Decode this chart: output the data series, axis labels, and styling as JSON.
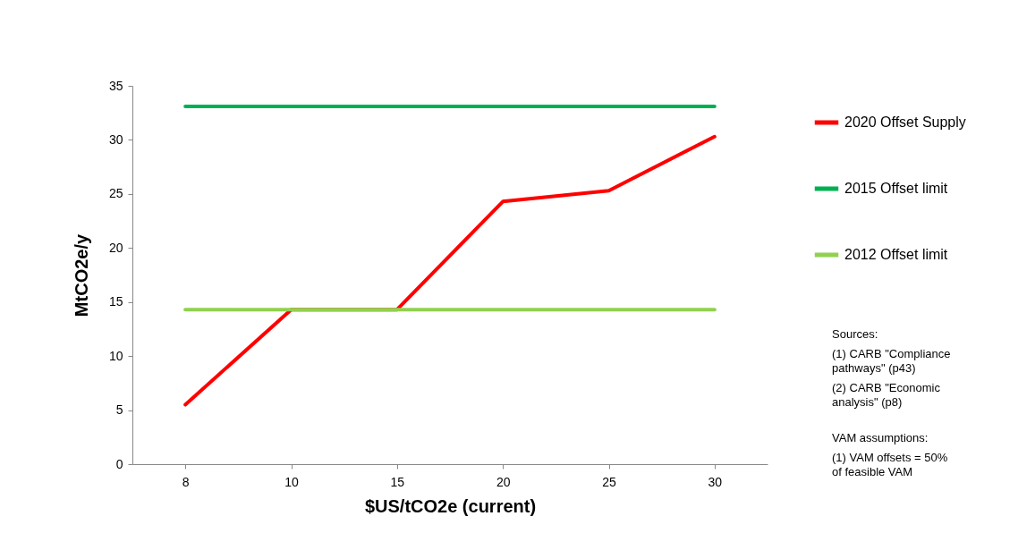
{
  "chart_data": {
    "type": "line",
    "xlabel": "$US/tCO2e (current)",
    "ylabel": "MtCO2e/y",
    "categories": [
      "8",
      "10",
      "15",
      "20",
      "25",
      "30"
    ],
    "series": [
      {
        "name": "2020 Offset Supply",
        "color": "#ff0000",
        "values": [
          5.5,
          14.3,
          14.3,
          24.3,
          25.3,
          30.3
        ]
      },
      {
        "name": "2015 Offset limit",
        "color": "#00b050",
        "values": [
          33.1,
          33.1,
          33.1,
          33.1,
          33.1,
          33.1
        ]
      },
      {
        "name": "2012 Offset limit",
        "color": "#92d050",
        "values": [
          14.3,
          14.3,
          14.3,
          14.3,
          14.3,
          14.3
        ]
      }
    ],
    "ylim": [
      0,
      35
    ],
    "yticks": [
      0,
      5,
      10,
      15,
      20,
      25,
      30,
      35
    ],
    "grid": false,
    "legend": "right",
    "marker": "none",
    "line_style": "solid",
    "annotations": [
      "Sources:",
      "(1) CARB \"Compliance pathways\" (p43)",
      "(2) CARB \"Economic analysis\" (p8)",
      "VAM assumptions:",
      "(1) VAM offsets = 50% of feasible VAM"
    ]
  }
}
